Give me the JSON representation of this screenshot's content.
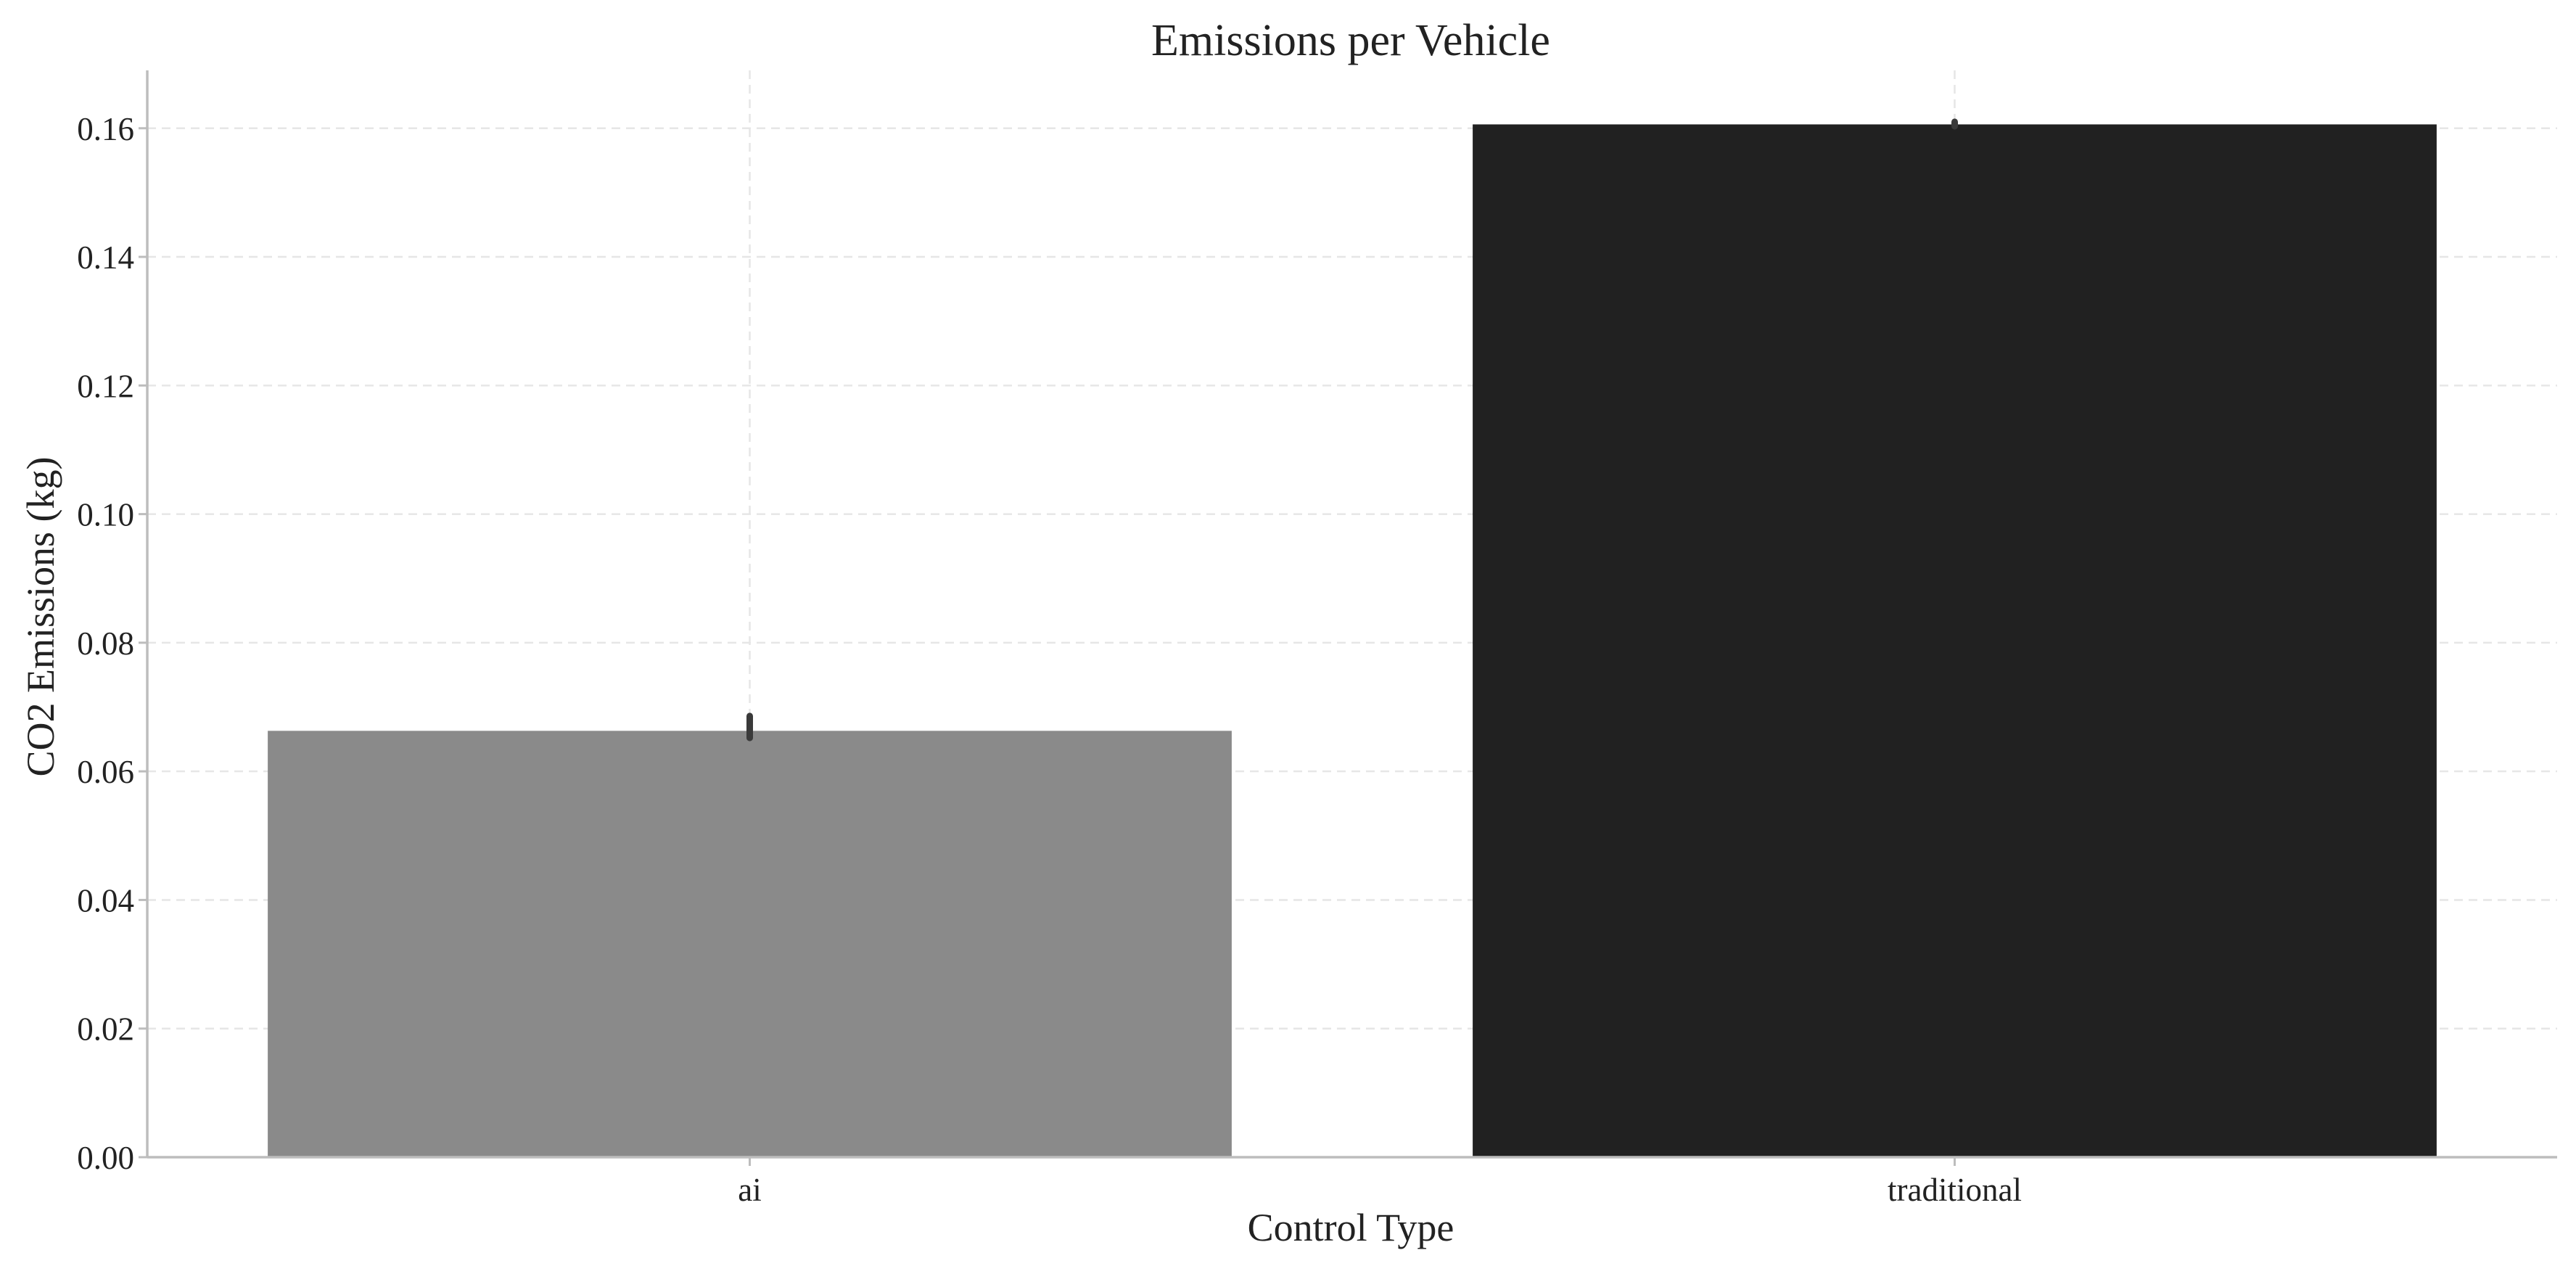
{
  "chart_data": {
    "type": "bar",
    "title": "Emissions per Vehicle",
    "xlabel": "Control Type",
    "ylabel": "CO2 Emissions (kg)",
    "categories": [
      "ai",
      "traditional"
    ],
    "values": [
      0.0663,
      0.1606
    ],
    "error_bars": [
      {
        "low": 0.0652,
        "high": 0.0686
      },
      {
        "low": 0.1603,
        "high": 0.161
      }
    ],
    "colors": [
      "#8a8a8a",
      "#212121"
    ],
    "ylim": [
      0,
      0.169
    ],
    "yticks": [
      0.0,
      0.02,
      0.04,
      0.06,
      0.08,
      0.1,
      0.12,
      0.14,
      0.16
    ],
    "ytick_labels": [
      "0.00",
      "0.02",
      "0.04",
      "0.06",
      "0.08",
      "0.10",
      "0.12",
      "0.14",
      "0.16"
    ],
    "grid": true,
    "legend": "none"
  }
}
